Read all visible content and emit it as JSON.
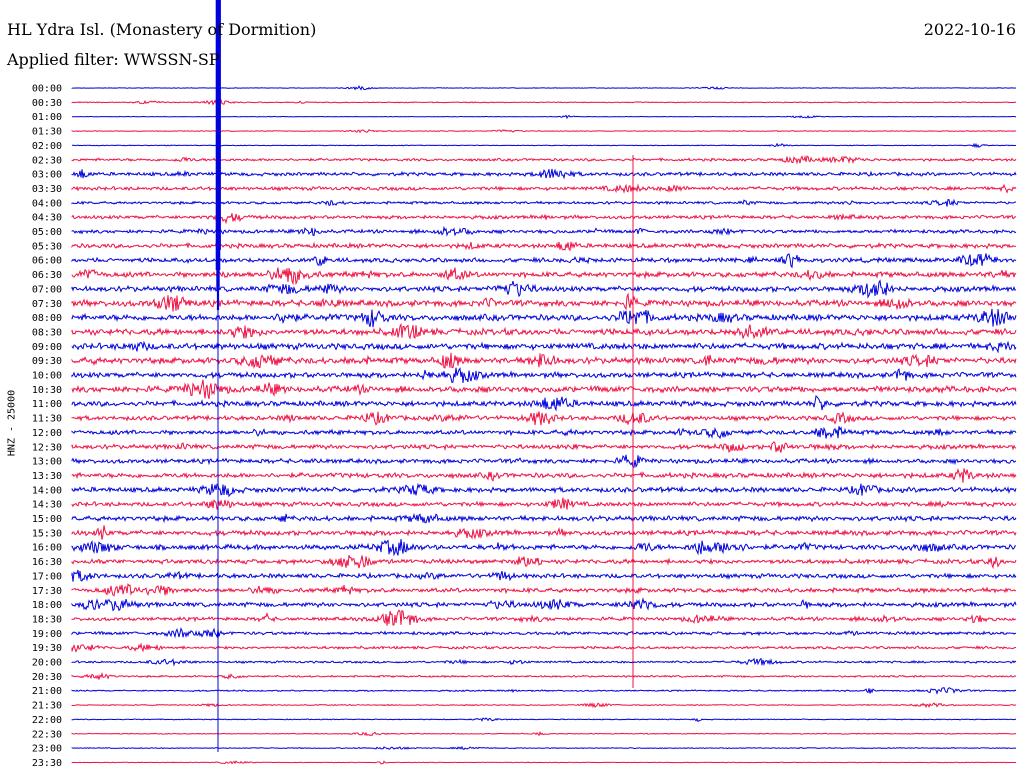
{
  "header": {
    "title": "HL Ydra Isl. (Monastery of Dormition)",
    "filter": "Applied filter: WWSSN-SP",
    "date": "2022-10-16"
  },
  "axis": {
    "channel_label": "HNZ - 25000"
  },
  "colors": {
    "trace_a": "#0000dd",
    "trace_b": "#ee1144",
    "text": "#000000",
    "background": "#ffffff"
  },
  "chart_data": {
    "type": "line",
    "description_kind": "helicorder",
    "row_labels": [
      "00:00",
      "00:30",
      "01:00",
      "01:30",
      "02:00",
      "02:30",
      "03:00",
      "03:30",
      "04:00",
      "04:30",
      "05:00",
      "05:30",
      "06:00",
      "06:30",
      "07:00",
      "07:30",
      "08:00",
      "08:30",
      "09:00",
      "09:30",
      "10:00",
      "10:30",
      "11:00",
      "11:30",
      "12:00",
      "12:30",
      "13:00",
      "13:30",
      "14:00",
      "14:30",
      "15:00",
      "15:30",
      "16:00",
      "16:30",
      "17:00",
      "17:30",
      "18:00",
      "18:30",
      "19:00",
      "19:30",
      "20:00",
      "20:30",
      "21:00",
      "21:30",
      "22:00",
      "22:30",
      "23:00",
      "23:30"
    ],
    "row_noise": [
      0.3,
      0.5,
      0.3,
      0.4,
      0.4,
      1.5,
      2.0,
      2.0,
      1.5,
      2.0,
      2.0,
      2.5,
      2.5,
      3.0,
      3.0,
      3.5,
      3.5,
      3.5,
      3.5,
      3.5,
      3.0,
      3.5,
      3.0,
      2.5,
      2.5,
      2.5,
      2.5,
      2.8,
      2.8,
      2.5,
      2.8,
      2.8,
      2.8,
      2.5,
      2.5,
      2.5,
      2.5,
      2.0,
      1.8,
      1.5,
      1.2,
      1.0,
      0.8,
      0.6,
      0.5,
      0.5,
      0.5,
      0.3
    ]
  }
}
